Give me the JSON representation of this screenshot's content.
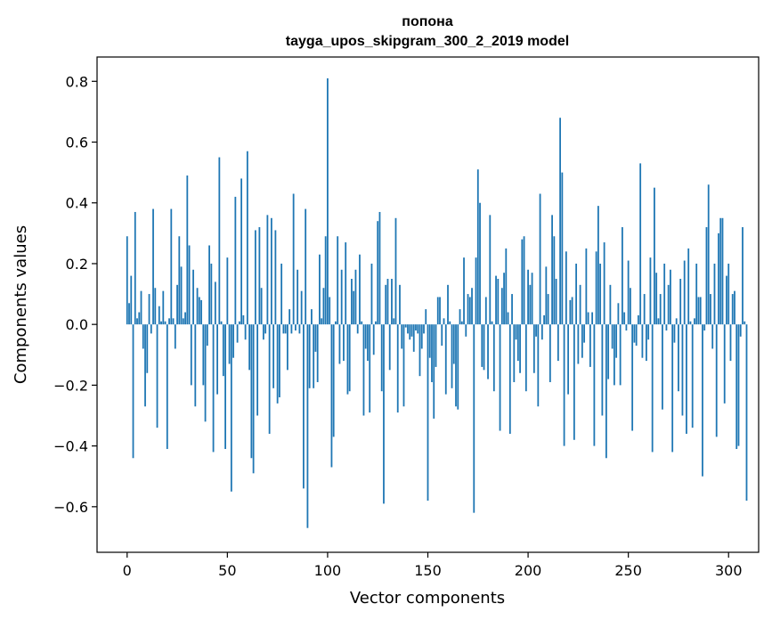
{
  "chart_data": {
    "type": "bar",
    "title_line1": "попона",
    "title_line2": "tayga_upos_skipgram_300_2_2019 model",
    "xlabel": "Vector components",
    "ylabel": "Components values",
    "xlim": [
      -15,
      315
    ],
    "ylim": [
      -0.75,
      0.88
    ],
    "xticks": [
      0,
      50,
      100,
      150,
      200,
      250,
      300
    ],
    "yticks": [
      -0.6,
      -0.4,
      -0.2,
      0.0,
      0.2,
      0.4,
      0.6,
      0.8
    ],
    "xtick_labels": [
      "0",
      "50",
      "100",
      "150",
      "200",
      "250",
      "300"
    ],
    "ytick_labels": [
      "−0.6",
      "−0.4",
      "−0.2",
      "0.0",
      "0.2",
      "0.4",
      "0.6",
      "0.8"
    ],
    "bar_color": "#1f77b4",
    "grid": false,
    "x_start": 0,
    "values": [
      0.29,
      0.07,
      0.16,
      -0.44,
      0.37,
      0.02,
      0.04,
      0.11,
      -0.08,
      -0.27,
      -0.16,
      0.1,
      -0.03,
      0.38,
      0.12,
      -0.34,
      0.06,
      0.01,
      0.11,
      0.01,
      -0.41,
      0.02,
      0.38,
      0.02,
      -0.08,
      0.13,
      0.29,
      0.19,
      0.02,
      0.04,
      0.49,
      0.26,
      -0.2,
      0.18,
      -0.27,
      0.12,
      0.09,
      0.08,
      -0.2,
      -0.32,
      -0.07,
      0.26,
      0.2,
      -0.42,
      0.14,
      -0.23,
      0.55,
      0.01,
      -0.17,
      -0.41,
      0.22,
      -0.13,
      -0.55,
      -0.11,
      0.42,
      -0.06,
      0.01,
      0.48,
      0.03,
      -0.05,
      0.57,
      -0.15,
      -0.44,
      -0.49,
      0.31,
      -0.3,
      0.32,
      0.12,
      -0.05,
      -0.03,
      0.36,
      -0.36,
      0.35,
      -0.21,
      0.31,
      -0.26,
      -0.24,
      0.2,
      -0.03,
      -0.03,
      -0.15,
      0.05,
      -0.03,
      0.43,
      -0.02,
      0.18,
      -0.03,
      0.11,
      -0.54,
      0.38,
      -0.67,
      -0.21,
      0.05,
      -0.21,
      -0.09,
      -0.19,
      0.23,
      0.02,
      0.12,
      0.29,
      0.81,
      0.09,
      -0.47,
      -0.37,
      0.01,
      0.29,
      -0.13,
      0.18,
      -0.12,
      0.27,
      -0.23,
      -0.22,
      0.15,
      0.11,
      0.18,
      -0.03,
      0.23,
      0.01,
      -0.3,
      -0.08,
      -0.12,
      -0.29,
      0.2,
      -0.1,
      0.01,
      0.34,
      0.37,
      -0.22,
      -0.59,
      0.13,
      0.15,
      -0.15,
      0.15,
      0.02,
      0.35,
      -0.29,
      0.13,
      -0.08,
      -0.27,
      -0.01,
      -0.03,
      -0.05,
      -0.04,
      -0.09,
      -0.02,
      -0.03,
      -0.17,
      -0.08,
      -0.03,
      0.05,
      -0.58,
      -0.11,
      -0.19,
      -0.31,
      -0.14,
      0.09,
      0.09,
      -0.07,
      0.02,
      -0.23,
      0.13,
      0.01,
      -0.21,
      -0.13,
      -0.27,
      -0.28,
      0.05,
      0.01,
      0.22,
      -0.04,
      0.1,
      0.09,
      0.12,
      -0.62,
      0.22,
      0.51,
      0.4,
      -0.14,
      -0.15,
      0.09,
      -0.18,
      0.36,
      0.01,
      -0.22,
      0.16,
      0.15,
      -0.35,
      0.12,
      0.17,
      0.25,
      0.04,
      -0.36,
      0.1,
      -0.19,
      -0.05,
      -0.12,
      -0.16,
      0.28,
      0.29,
      -0.22,
      0.18,
      0.13,
      0.17,
      -0.16,
      -0.04,
      -0.27,
      0.43,
      -0.05,
      0.03,
      0.19,
      0.1,
      -0.19,
      0.36,
      0.29,
      0.15,
      -0.12,
      0.68,
      0.5,
      -0.4,
      0.24,
      -0.23,
      0.08,
      0.09,
      -0.38,
      0.2,
      -0.13,
      0.13,
      -0.11,
      -0.06,
      0.25,
      0.04,
      -0.14,
      0.04,
      -0.4,
      0.24,
      0.39,
      0.2,
      -0.3,
      0.27,
      -0.44,
      -0.18,
      0.13,
      -0.08,
      -0.2,
      -0.11,
      0.07,
      -0.2,
      0.32,
      0.04,
      -0.02,
      0.21,
      0.12,
      -0.35,
      -0.06,
      -0.07,
      0.03,
      0.53,
      -0.11,
      0.1,
      -0.12,
      -0.05,
      0.22,
      -0.42,
      0.45,
      0.17,
      0.02,
      0.1,
      -0.28,
      0.2,
      -0.02,
      0.13,
      0.18,
      -0.42,
      -0.06,
      0.02,
      -0.22,
      0.15,
      -0.3,
      0.21,
      -0.36,
      0.25,
      0.01,
      -0.34,
      0.02,
      0.2,
      0.09,
      0.09,
      -0.5,
      -0.02,
      0.32,
      0.46,
      0.1,
      -0.08,
      0.2,
      -0.37,
      0.3,
      0.35,
      0.35,
      -0.26,
      0.16,
      0.2,
      -0.12,
      0.1,
      0.11,
      -0.41,
      -0.4,
      -0.04,
      0.32,
      0.01,
      -0.58
    ]
  }
}
